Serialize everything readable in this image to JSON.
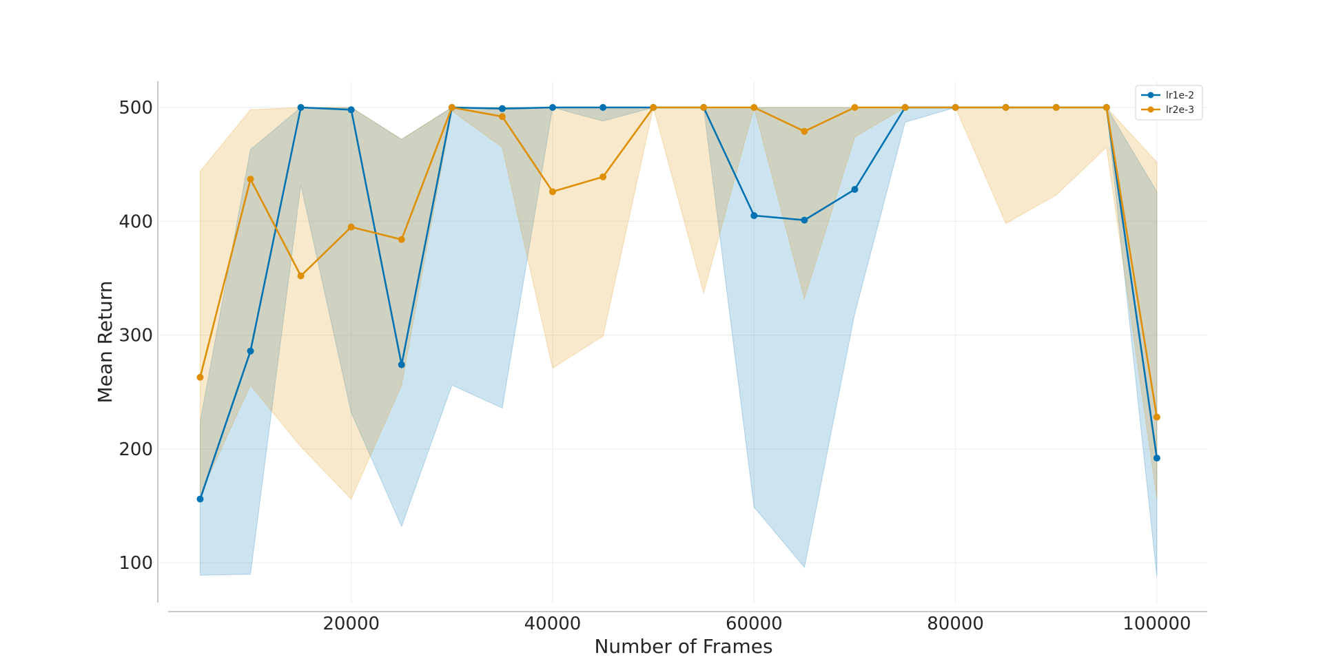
{
  "chart_data": {
    "type": "line",
    "title": "",
    "xlabel": "Number of Frames",
    "ylabel": "Mean Return",
    "xlim": [
      1000,
      105000
    ],
    "ylim": [
      65,
      523
    ],
    "xticks": [
      20000,
      40000,
      60000,
      80000,
      100000
    ],
    "yticks": [
      100,
      200,
      300,
      400,
      500
    ],
    "grid": true,
    "legend": "top-right",
    "x": [
      5000,
      10000,
      15000,
      20000,
      25000,
      30000,
      35000,
      40000,
      45000,
      50000,
      55000,
      60000,
      65000,
      70000,
      75000,
      80000,
      85000,
      90000,
      95000,
      100000
    ],
    "series": [
      {
        "name": "lr1e-2",
        "color": "#0072B2",
        "values": [
          156,
          286,
          500,
          498,
          274,
          500,
          499,
          500,
          500,
          500,
          500,
          405,
          401,
          428,
          500,
          500,
          500,
          500,
          500,
          192
        ],
        "lower": [
          89,
          90,
          432,
          232,
          132,
          256,
          236,
          500,
          488,
          500,
          500,
          149,
          96,
          319,
          487,
          500,
          500,
          500,
          500,
          88
        ],
        "upper": [
          224,
          463,
          500,
          500,
          472,
          500,
          500,
          500,
          500,
          500,
          500,
          500,
          500,
          500,
          500,
          500,
          500,
          500,
          500,
          426
        ]
      },
      {
        "name": "lr2e-3",
        "color": "#DE8F05",
        "values": [
          263,
          437,
          352,
          395,
          384,
          500,
          492,
          426,
          439,
          500,
          500,
          500,
          479,
          500,
          500,
          500,
          500,
          500,
          500,
          228
        ],
        "lower": [
          160,
          256,
          202,
          156,
          256,
          497,
          465,
          271,
          299,
          500,
          337,
          500,
          332,
          474,
          500,
          500,
          398,
          423,
          465,
          157
        ],
        "upper": [
          444,
          498,
          500,
          500,
          472,
          500,
          500,
          500,
          500,
          500,
          500,
          500,
          500,
          500,
          500,
          500,
          500,
          500,
          500,
          452
        ]
      }
    ]
  }
}
